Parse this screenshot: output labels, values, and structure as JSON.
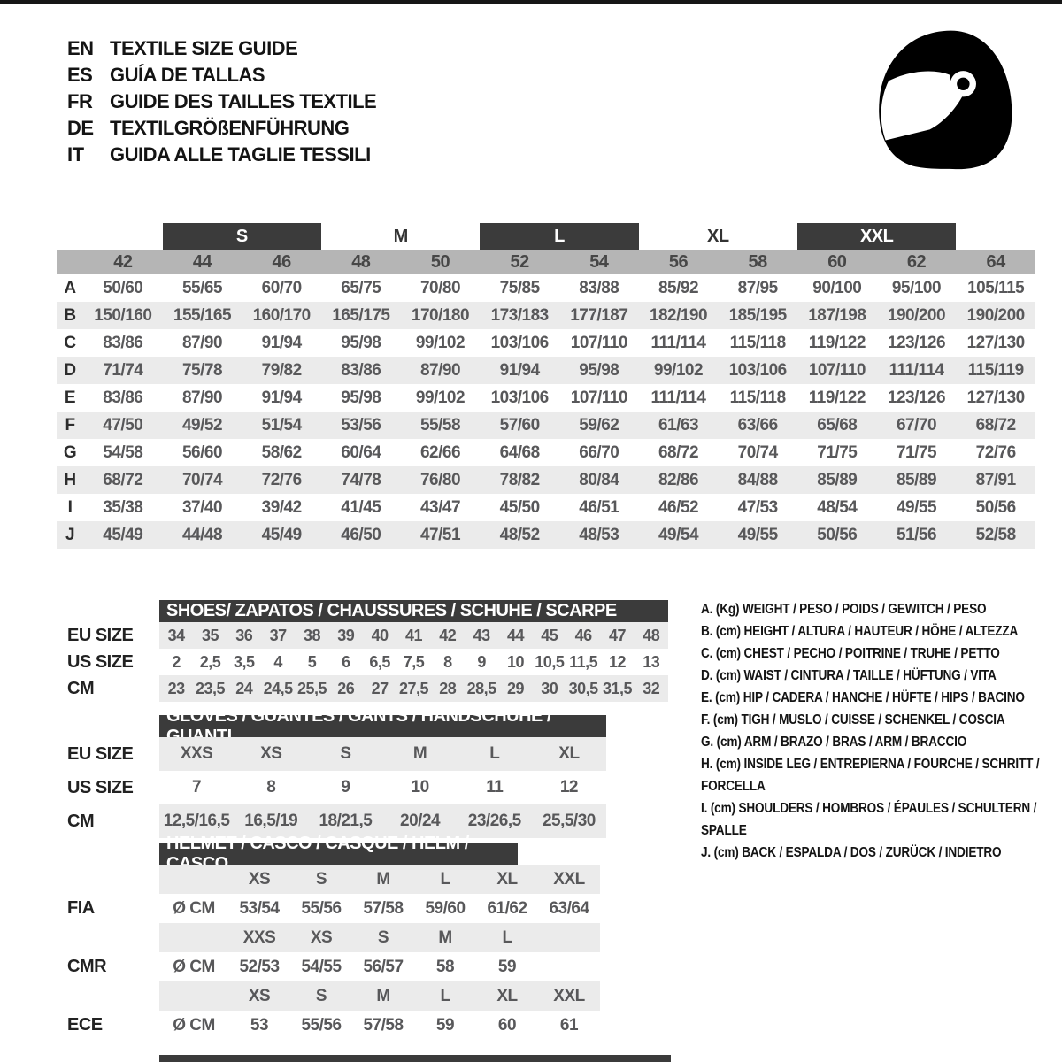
{
  "colors": {
    "dark_bar": "#3b3b3b",
    "band_gray": "#b5b5b5",
    "row_alt_gray": "#ebebeb",
    "value_text": "#58585a",
    "title_text": "#141414"
  },
  "languages": [
    {
      "code": "EN",
      "label": "TEXTILE SIZE GUIDE"
    },
    {
      "code": "ES",
      "label": "GUÍA DE TALLAS"
    },
    {
      "code": "FR",
      "label": "GUIDE DES TAILLES TEXTILE"
    },
    {
      "code": "DE",
      "label": "TEXTILGRÖßENFÜHRUNG"
    },
    {
      "code": "IT",
      "label": "GUIDA ALLE TAGLIE TESSILI"
    }
  ],
  "icons": {
    "logo": "racing-helmet-icon"
  },
  "size_table": {
    "groups": [
      {
        "label": "S",
        "dark": true
      },
      {
        "label": "M",
        "dark": false
      },
      {
        "label": "L",
        "dark": true
      },
      {
        "label": "XL",
        "dark": false
      },
      {
        "label": "XXL",
        "dark": true
      }
    ],
    "columns": [
      "42",
      "44",
      "46",
      "48",
      "50",
      "52",
      "54",
      "56",
      "58",
      "60",
      "62",
      "64"
    ],
    "rows": [
      {
        "letter": "A",
        "values": [
          "50/60",
          "55/65",
          "60/70",
          "65/75",
          "70/80",
          "75/85",
          "83/88",
          "85/92",
          "87/95",
          "90/100",
          "95/100",
          "105/115"
        ]
      },
      {
        "letter": "B",
        "values": [
          "150/160",
          "155/165",
          "160/170",
          "165/175",
          "170/180",
          "173/183",
          "177/187",
          "182/190",
          "185/195",
          "187/198",
          "190/200",
          "190/200"
        ]
      },
      {
        "letter": "C",
        "values": [
          "83/86",
          "87/90",
          "91/94",
          "95/98",
          "99/102",
          "103/106",
          "107/110",
          "111/114",
          "115/118",
          "119/122",
          "123/126",
          "127/130"
        ]
      },
      {
        "letter": "D",
        "values": [
          "71/74",
          "75/78",
          "79/82",
          "83/86",
          "87/90",
          "91/94",
          "95/98",
          "99/102",
          "103/106",
          "107/110",
          "111/114",
          "115/119"
        ]
      },
      {
        "letter": "E",
        "values": [
          "83/86",
          "87/90",
          "91/94",
          "95/98",
          "99/102",
          "103/106",
          "107/110",
          "111/114",
          "115/118",
          "119/122",
          "123/126",
          "127/130"
        ]
      },
      {
        "letter": "F",
        "values": [
          "47/50",
          "49/52",
          "51/54",
          "53/56",
          "55/58",
          "57/60",
          "59/62",
          "61/63",
          "63/66",
          "65/68",
          "67/70",
          "68/72"
        ]
      },
      {
        "letter": "G",
        "values": [
          "54/58",
          "56/60",
          "58/62",
          "60/64",
          "62/66",
          "64/68",
          "66/70",
          "68/72",
          "70/74",
          "71/75",
          "71/75",
          "72/76"
        ]
      },
      {
        "letter": "H",
        "values": [
          "68/72",
          "70/74",
          "72/76",
          "74/78",
          "76/80",
          "78/82",
          "80/84",
          "82/86",
          "84/88",
          "85/89",
          "85/89",
          "87/91"
        ]
      },
      {
        "letter": "I",
        "values": [
          "35/38",
          "37/40",
          "39/42",
          "41/45",
          "43/47",
          "45/50",
          "46/51",
          "46/52",
          "47/53",
          "48/54",
          "49/55",
          "50/56"
        ]
      },
      {
        "letter": "J",
        "values": [
          "45/49",
          "44/48",
          "45/49",
          "46/50",
          "47/51",
          "48/52",
          "48/53",
          "49/54",
          "49/55",
          "50/56",
          "51/56",
          "52/58"
        ]
      }
    ]
  },
  "shoes": {
    "title": "SHOES/ ZAPATOS / CHAUSSURES / SCHUHE / SCARPE",
    "rows": [
      {
        "label": "EU SIZE",
        "values": [
          "34",
          "35",
          "36",
          "37",
          "38",
          "39",
          "40",
          "41",
          "42",
          "43",
          "44",
          "45",
          "46",
          "47",
          "48"
        ]
      },
      {
        "label": "US SIZE",
        "values": [
          "2",
          "2,5",
          "3,5",
          "4",
          "5",
          "6",
          "6,5",
          "7,5",
          "8",
          "9",
          "10",
          "10,5",
          "11,5",
          "12",
          "13"
        ]
      },
      {
        "label": "CM",
        "values": [
          "23",
          "23,5",
          "24",
          "24,5",
          "25,5",
          "26",
          "27",
          "27,5",
          "28",
          "28,5",
          "29",
          "30",
          "30,5",
          "31,5",
          "32"
        ]
      }
    ]
  },
  "gloves": {
    "title": "GLOVES / GUANTES / GANTS / HANDSCHUHE / GUANTI",
    "rows": [
      {
        "label": "EU SIZE",
        "values": [
          "XXS",
          "XS",
          "S",
          "M",
          "L",
          "XL"
        ]
      },
      {
        "label": "US SIZE",
        "values": [
          "7",
          "8",
          "9",
          "10",
          "11",
          "12"
        ]
      },
      {
        "label": "CM",
        "values": [
          "12,5/16,5",
          "16,5/19",
          "18/21,5",
          "20/24",
          "23/26,5",
          "25,5/30"
        ]
      }
    ]
  },
  "helmet": {
    "title": "HELMET / CASCO / CASQUE / HELM / CASCO",
    "unit": "Ø CM",
    "groups": [
      {
        "label": "FIA",
        "sizes": [
          "XS",
          "S",
          "M",
          "L",
          "XL",
          "XXL"
        ],
        "values": [
          "53/54",
          "55/56",
          "57/58",
          "59/60",
          "61/62",
          "63/64"
        ]
      },
      {
        "label": "CMR",
        "sizes": [
          "XXS",
          "XS",
          "S",
          "M",
          "L"
        ],
        "values": [
          "52/53",
          "54/55",
          "56/57",
          "58",
          "59"
        ]
      },
      {
        "label": "ECE",
        "sizes": [
          "XS",
          "S",
          "M",
          "L",
          "XL",
          "XXL"
        ],
        "values": [
          "53",
          "55/56",
          "57/58",
          "59",
          "60",
          "61"
        ]
      }
    ]
  },
  "legend": {
    "items": [
      "A. (Kg) WEIGHT / PESO / POIDS / GEWITCH / PESO",
      "B. (cm) HEIGHT / ALTURA / HAUTEUR / HÖHE / ALTEZZA",
      "C. (cm) CHEST / PECHO / POITRINE / TRUHE / PETTO",
      "D. (cm) WAIST / CINTURA / TAILLE / HÜFTUNG / VITA",
      "E. (cm) HIP / CADERA / HANCHE / HÜFTE / HIPS / BACINO",
      "F. (cm) TIGH / MUSLO / CUISSE / SCHENKEL / COSCIA",
      "G. (cm) ARM / BRAZO / BRAS / ARM / BRACCIO",
      "H. (cm) INSIDE LEG / ENTREPIERNA / FOURCHE / SCHRITT / FORCELLA",
      "I. (cm) SHOULDERS / HOMBROS / ÉPAULES / SCHULTERN / SPALLE",
      "J. (cm) BACK / ESPALDA / DOS / ZURÜCK / INDIETRO"
    ]
  }
}
